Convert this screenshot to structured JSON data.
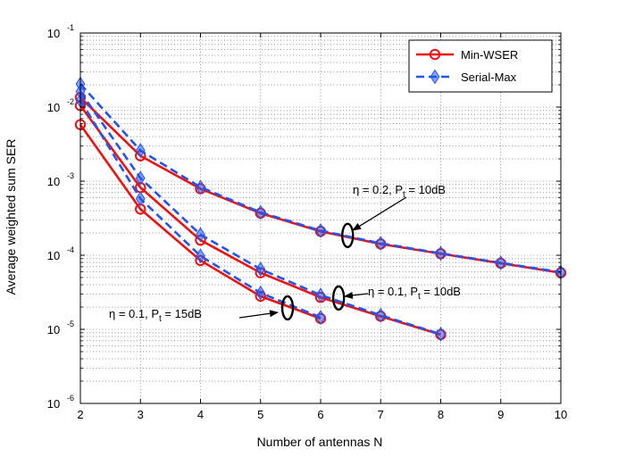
{
  "chart_data": {
    "type": "line",
    "title": "",
    "xlabel": "Number of antennas N",
    "ylabel": "Average weighted sum SER",
    "xlim": [
      2,
      10
    ],
    "ylim": [
      1e-06,
      0.1
    ],
    "yscale": "log",
    "grid": true,
    "x_ticks": [
      "2",
      "3",
      "4",
      "5",
      "6",
      "7",
      "8",
      "9",
      "10"
    ],
    "y_ticks": [
      {
        "base": "10",
        "exp": "-6"
      },
      {
        "base": "10",
        "exp": "-5"
      },
      {
        "base": "10",
        "exp": "-4"
      },
      {
        "base": "10",
        "exp": "-3"
      },
      {
        "base": "10",
        "exp": "-2"
      },
      {
        "base": "10",
        "exp": "-1"
      }
    ],
    "legend": {
      "position": "top-right",
      "entries": [
        {
          "name": "Min-WSER",
          "color": "#ee1111",
          "style": "solid",
          "marker": "circle"
        },
        {
          "name": "Serial-Max",
          "color": "#2255ee",
          "style": "dashed",
          "marker": "diamond"
        }
      ]
    },
    "groups": [
      {
        "label": "η = 0.2, P_t = 10dB",
        "x": [
          2,
          3,
          4,
          5,
          6,
          7,
          8,
          9,
          10
        ],
        "series": [
          {
            "name": "Min-WSER",
            "values": [
              0.0135,
              0.0022,
              0.00079,
              0.00037,
              0.00021,
              0.000142,
              0.000105,
              7.8e-05,
              5.8e-05
            ]
          },
          {
            "name": "Serial-Max",
            "values": [
              0.0205,
              0.0026,
              0.00083,
              0.00038,
              0.000215,
              0.000145,
              0.000106,
              7.9e-05,
              5.9e-05
            ]
          }
        ]
      },
      {
        "label": "η = 0.1, P_t = 10dB",
        "x": [
          2,
          3,
          4,
          5,
          6,
          7,
          8
        ],
        "series": [
          {
            "name": "Min-WSER",
            "values": [
              0.0105,
              0.00082,
              0.00016,
              5.8e-05,
              2.7e-05,
              1.5e-05,
              8.5e-06
            ]
          },
          {
            "name": "Serial-Max",
            "values": [
              0.0162,
              0.0011,
              0.00019,
              6.5e-05,
              2.9e-05,
              1.55e-05,
              8.6e-06
            ]
          }
        ]
      },
      {
        "label": "η = 0.1, P_t = 15dB",
        "x": [
          2,
          3,
          4,
          5,
          6
        ],
        "series": [
          {
            "name": "Min-WSER",
            "values": [
              0.0058,
              0.00042,
              8.5e-05,
              2.8e-05,
              1.4e-05
            ]
          },
          {
            "name": "Serial-Max",
            "values": [
              0.0123,
              0.00058,
              9.8e-05,
              3.1e-05,
              1.45e-05
            ]
          }
        ]
      }
    ],
    "annotations": [
      {
        "eta": "η = 0.2, P",
        "sub": "t",
        "tail": " = 10dB"
      },
      {
        "eta": "η = 0.1, P",
        "sub": "t",
        "tail": " = 10dB"
      },
      {
        "eta": "η = 0.1, P",
        "sub": "t",
        "tail": " = 15dB"
      }
    ]
  }
}
